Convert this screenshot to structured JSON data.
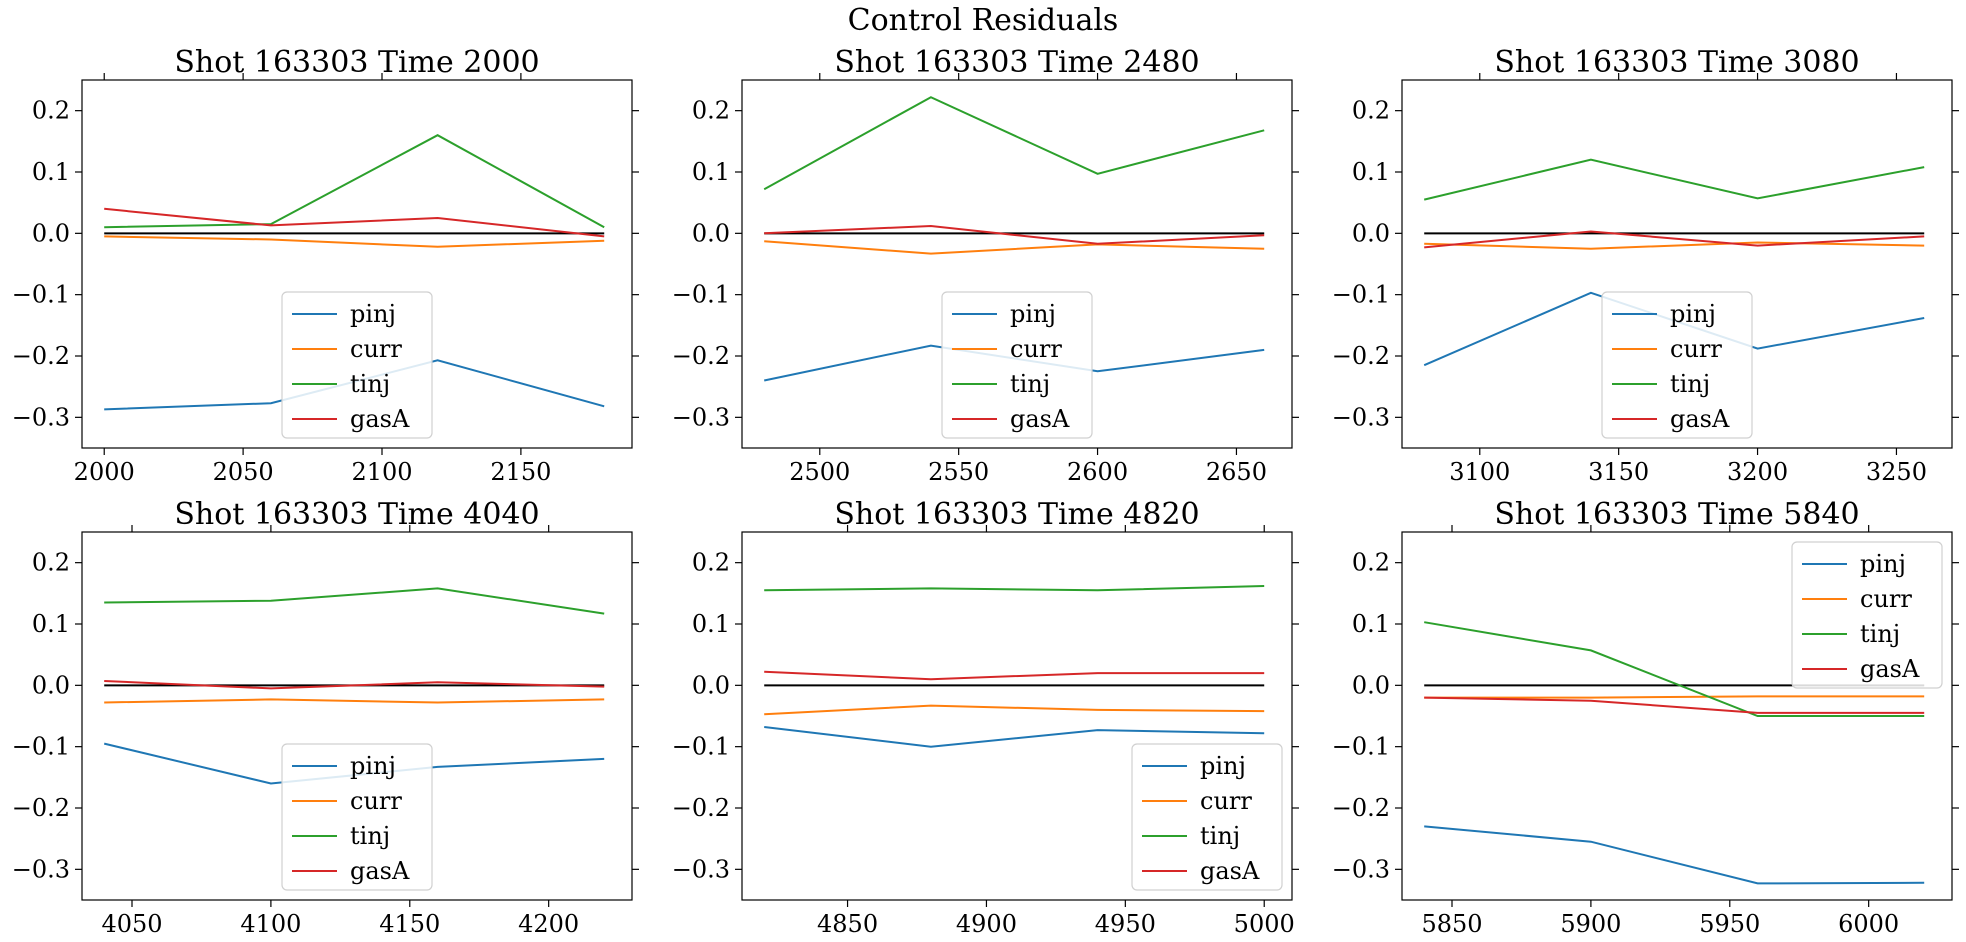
{
  "suptitle": "Control Residuals",
  "colors": {
    "pinj": "#1f77b4",
    "curr": "#ff7f0e",
    "tinj": "#2ca02c",
    "gasA": "#d62728",
    "zero_line": "#000000"
  },
  "chart_data": [
    {
      "type": "line",
      "title": "Shot 163303   Time 2000",
      "x": [
        2000,
        2060,
        2120,
        2180
      ],
      "xlim": [
        1992,
        2190
      ],
      "xticks": [
        2000,
        2050,
        2100,
        2150
      ],
      "ylim": [
        -0.35,
        0.25
      ],
      "yticks": [
        0.2,
        0.1,
        0.0,
        -0.1,
        -0.2,
        -0.3
      ],
      "legend": "lower-center",
      "series": [
        {
          "name": "pinj",
          "values": [
            -0.287,
            -0.277,
            -0.207,
            -0.282
          ]
        },
        {
          "name": "curr",
          "values": [
            -0.005,
            -0.01,
            -0.022,
            -0.012
          ]
        },
        {
          "name": "tinj",
          "values": [
            0.01,
            0.015,
            0.16,
            0.01
          ]
        },
        {
          "name": "gasA",
          "values": [
            0.04,
            0.013,
            0.025,
            -0.005
          ]
        }
      ]
    },
    {
      "type": "line",
      "title": "Shot 163303   Time 2480",
      "x": [
        2480,
        2540,
        2600,
        2660
      ],
      "xlim": [
        2472,
        2670
      ],
      "xticks": [
        2500,
        2550,
        2600,
        2650
      ],
      "ylim": [
        -0.35,
        0.25
      ],
      "yticks": [
        0.2,
        0.1,
        0.0,
        -0.1,
        -0.2,
        -0.3
      ],
      "legend": "lower-center",
      "series": [
        {
          "name": "pinj",
          "values": [
            -0.24,
            -0.183,
            -0.225,
            -0.19
          ]
        },
        {
          "name": "curr",
          "values": [
            -0.013,
            -0.033,
            -0.018,
            -0.025
          ]
        },
        {
          "name": "tinj",
          "values": [
            0.072,
            0.222,
            0.097,
            0.168
          ]
        },
        {
          "name": "gasA",
          "values": [
            0.0,
            0.012,
            -0.017,
            -0.003
          ]
        }
      ]
    },
    {
      "type": "line",
      "title": "Shot 163303   Time 3080",
      "x": [
        3080,
        3140,
        3200,
        3260
      ],
      "xlim": [
        3072,
        3270
      ],
      "xticks": [
        3100,
        3150,
        3200,
        3250
      ],
      "ylim": [
        -0.35,
        0.25
      ],
      "yticks": [
        0.2,
        0.1,
        0.0,
        -0.1,
        -0.2,
        -0.3
      ],
      "legend": "lower-center",
      "series": [
        {
          "name": "pinj",
          "values": [
            -0.215,
            -0.097,
            -0.188,
            -0.138
          ]
        },
        {
          "name": "curr",
          "values": [
            -0.017,
            -0.025,
            -0.015,
            -0.02
          ]
        },
        {
          "name": "tinj",
          "values": [
            0.055,
            0.12,
            0.057,
            0.108
          ]
        },
        {
          "name": "gasA",
          "values": [
            -0.023,
            0.003,
            -0.02,
            -0.005
          ]
        }
      ]
    },
    {
      "type": "line",
      "title": "Shot 163303   Time 4040",
      "x": [
        4040,
        4100,
        4160,
        4220
      ],
      "xlim": [
        4032,
        4230
      ],
      "xticks": [
        4050,
        4100,
        4150,
        4200
      ],
      "ylim": [
        -0.35,
        0.25
      ],
      "yticks": [
        0.2,
        0.1,
        0.0,
        -0.1,
        -0.2,
        -0.3
      ],
      "legend": "lower-center",
      "series": [
        {
          "name": "pinj",
          "values": [
            -0.095,
            -0.16,
            -0.133,
            -0.12
          ]
        },
        {
          "name": "curr",
          "values": [
            -0.028,
            -0.023,
            -0.028,
            -0.023
          ]
        },
        {
          "name": "tinj",
          "values": [
            0.135,
            0.138,
            0.158,
            0.117
          ]
        },
        {
          "name": "gasA",
          "values": [
            0.007,
            -0.005,
            0.005,
            -0.002
          ]
        }
      ]
    },
    {
      "type": "line",
      "title": "Shot 163303   Time 4820",
      "x": [
        4820,
        4880,
        4940,
        5000
      ],
      "xlim": [
        4812,
        5010
      ],
      "xticks": [
        4850,
        4900,
        4950,
        5000
      ],
      "ylim": [
        -0.35,
        0.25
      ],
      "yticks": [
        0.2,
        0.1,
        0.0,
        -0.1,
        -0.2,
        -0.3
      ],
      "legend": "lower-right",
      "series": [
        {
          "name": "pinj",
          "values": [
            -0.068,
            -0.1,
            -0.073,
            -0.078
          ]
        },
        {
          "name": "curr",
          "values": [
            -0.047,
            -0.033,
            -0.04,
            -0.042
          ]
        },
        {
          "name": "tinj",
          "values": [
            0.155,
            0.158,
            0.155,
            0.162
          ]
        },
        {
          "name": "gasA",
          "values": [
            0.022,
            0.01,
            0.02,
            0.02
          ]
        }
      ]
    },
    {
      "type": "line",
      "title": "Shot 163303   Time 5840",
      "x": [
        5840,
        5900,
        5960,
        6020
      ],
      "xlim": [
        5832,
        6030
      ],
      "xticks": [
        5850,
        5900,
        5950,
        6000
      ],
      "ylim": [
        -0.35,
        0.25
      ],
      "yticks": [
        0.2,
        0.1,
        0.0,
        -0.1,
        -0.2,
        -0.3
      ],
      "legend": "upper-right",
      "series": [
        {
          "name": "pinj",
          "values": [
            -0.23,
            -0.255,
            -0.323,
            -0.322
          ]
        },
        {
          "name": "curr",
          "values": [
            -0.02,
            -0.02,
            -0.018,
            -0.018
          ]
        },
        {
          "name": "tinj",
          "values": [
            0.103,
            0.057,
            -0.05,
            -0.05
          ]
        },
        {
          "name": "gasA",
          "values": [
            -0.02,
            -0.025,
            -0.045,
            -0.045
          ]
        }
      ]
    }
  ]
}
